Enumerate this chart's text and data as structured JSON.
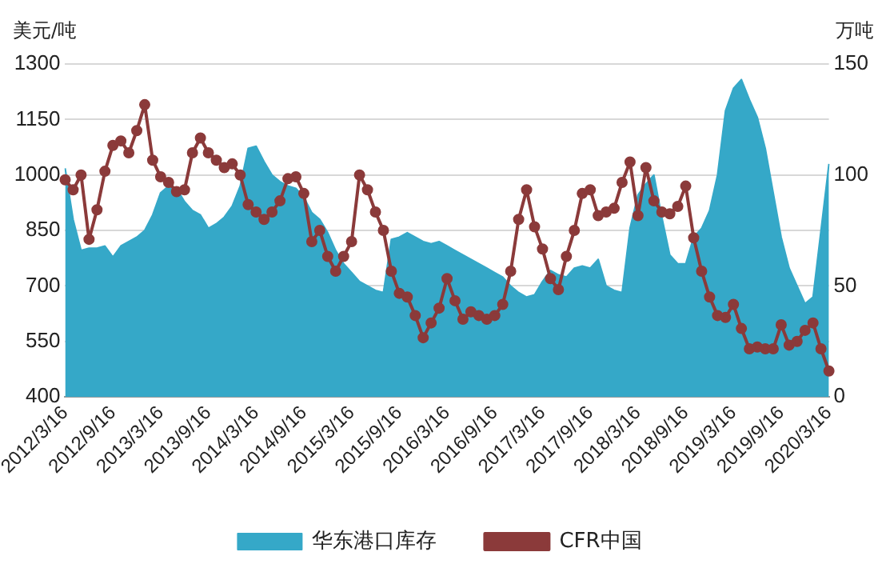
{
  "chart_data": {
    "type": "line",
    "ylabel": "美元/吨",
    "y2label": "万吨",
    "categories": [
      "2012/3/16",
      null,
      null,
      null,
      null,
      null,
      "2012/9/16",
      null,
      null,
      null,
      null,
      null,
      "2013/3/16",
      null,
      null,
      null,
      null,
      null,
      "2013/9/16",
      null,
      null,
      null,
      null,
      null,
      "2014/3/16",
      null,
      null,
      null,
      null,
      null,
      "2014/9/16",
      null,
      null,
      null,
      null,
      null,
      "2015/3/16",
      null,
      null,
      null,
      null,
      null,
      "2015/9/16",
      null,
      null,
      null,
      null,
      null,
      "2016/3/16",
      null,
      null,
      null,
      null,
      null,
      "2016/9/16",
      null,
      null,
      null,
      null,
      null,
      "2017/3/16",
      null,
      null,
      null,
      null,
      null,
      "2017/9/16",
      null,
      null,
      null,
      null,
      null,
      "2018/3/16",
      null,
      null,
      null,
      null,
      null,
      "2018/9/16",
      null,
      null,
      null,
      null,
      null,
      "2019/3/16",
      null,
      null,
      null,
      null,
      null,
      "2019/9/16",
      null,
      null,
      null,
      null,
      null,
      "2020/3/16"
    ],
    "series": [
      {
        "name": "华东港口库存",
        "type": "area",
        "axis": "y2",
        "color": "#35a8c8",
        "values": [
          103,
          80,
          66,
          67,
          67,
          68,
          63,
          68,
          70,
          72,
          75,
          82,
          92,
          95,
          94,
          88,
          84,
          82,
          76,
          78,
          81,
          86,
          95,
          112,
          113,
          106,
          100,
          97,
          95,
          94,
          90,
          83,
          80,
          74,
          66,
          60,
          56,
          52,
          50,
          48,
          47,
          71,
          72,
          74,
          72,
          70,
          69,
          70,
          68,
          66,
          64,
          62,
          60,
          58,
          56,
          54,
          50,
          47,
          45,
          46,
          52,
          57,
          55,
          54,
          58,
          59,
          58,
          62,
          50,
          48,
          47,
          76,
          91,
          96,
          100,
          81,
          64,
          60,
          60,
          72,
          76,
          84,
          100,
          129,
          139,
          143,
          134,
          126,
          112,
          92,
          72,
          58,
          50,
          42,
          45,
          75,
          105
        ]
      },
      {
        "name": "CFR中国",
        "axis": "y",
        "color": "#8b3a3a",
        "marker": "circle",
        "values": [
          987,
          960,
          1000,
          826,
          906,
          1010,
          1080,
          1092,
          1060,
          1120,
          1190,
          1040,
          995,
          980,
          955,
          960,
          1060,
          1100,
          1060,
          1040,
          1020,
          1030,
          1000,
          920,
          900,
          880,
          900,
          930,
          990,
          995,
          950,
          820,
          850,
          780,
          740,
          780,
          820,
          1000,
          960,
          900,
          850,
          740,
          680,
          670,
          620,
          560,
          600,
          640,
          720,
          660,
          610,
          630,
          620,
          610,
          620,
          650,
          740,
          880,
          960,
          860,
          800,
          720,
          690,
          780,
          850,
          950,
          960,
          890,
          900,
          910,
          980,
          1035,
          890,
          1020,
          930,
          900,
          895,
          915,
          970,
          830,
          740,
          670,
          620,
          615,
          650,
          585,
          530,
          535,
          530,
          530,
          595,
          540,
          550,
          580,
          600,
          530,
          470
        ]
      }
    ],
    "ylim": [
      400,
      1300
    ],
    "yticks": [
      400,
      550,
      700,
      850,
      1000,
      1150,
      1300
    ],
    "y2lim": [
      0,
      150
    ],
    "y2ticks": [
      0,
      50,
      100,
      150
    ],
    "grid": "y",
    "legend": "bottom"
  }
}
